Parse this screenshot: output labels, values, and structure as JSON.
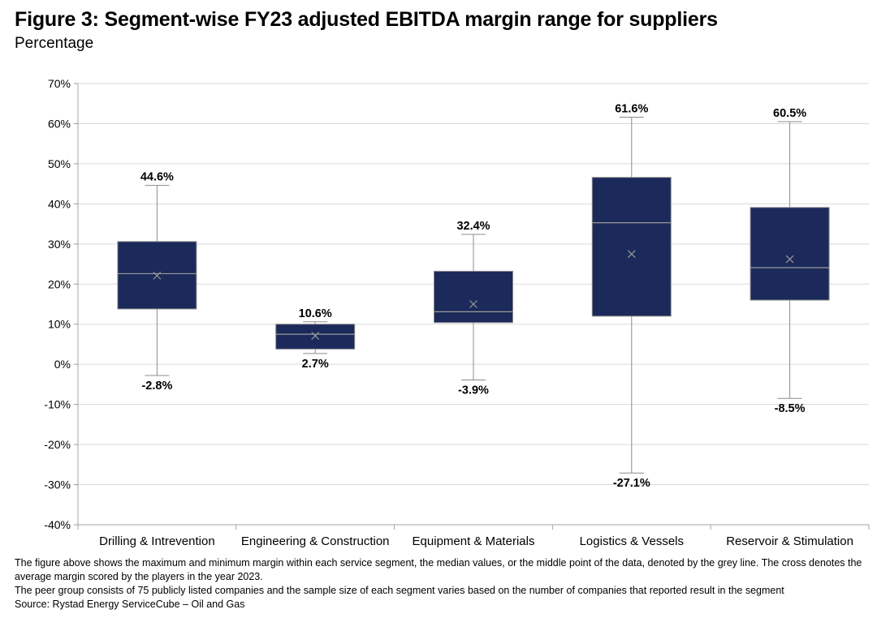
{
  "title": "Figure 3: Segment-wise FY23 adjusted EBITDA margin range for suppliers",
  "subtitle": "Percentage",
  "chart_data": {
    "type": "box",
    "ylabel": "Percentage",
    "ylim": [
      -40,
      70
    ],
    "yticks": [
      70,
      60,
      50,
      40,
      30,
      20,
      10,
      0,
      -10,
      -20,
      -30,
      -40
    ],
    "ytick_labels": [
      "70%",
      "60%",
      "50%",
      "40%",
      "30%",
      "20%",
      "10%",
      "0%",
      "-10%",
      "-20%",
      "-30%",
      "-40%"
    ],
    "grid": true,
    "box_color": "#1b2a5a",
    "categories": [
      "Drilling & Intrevention",
      "Engineering & Construction",
      "Equipment & Materials",
      "Logistics & Vessels",
      "Reservoir & Stimulation"
    ],
    "series": [
      {
        "name": "Drilling & Intrevention",
        "min": -2.8,
        "q1": 13.8,
        "median": 22.6,
        "q3": 30.6,
        "max": 44.6,
        "mean": 22.1,
        "min_label": "-2.8%",
        "max_label": "44.6%"
      },
      {
        "name": "Engineering & Construction",
        "min": 2.7,
        "q1": 3.8,
        "median": 7.5,
        "q3": 10.0,
        "max": 10.6,
        "mean": 7.1,
        "min_label": "2.7%",
        "max_label": "10.6%"
      },
      {
        "name": "Equipment & Materials",
        "min": -3.9,
        "q1": 10.4,
        "median": 13.1,
        "q3": 23.2,
        "max": 32.4,
        "mean": 15.0,
        "min_label": "-3.9%",
        "max_label": "32.4%"
      },
      {
        "name": "Logistics & Vessels",
        "min": -27.1,
        "q1": 12.0,
        "median": 35.3,
        "q3": 46.6,
        "max": 61.6,
        "mean": 27.5,
        "min_label": "-27.1%",
        "max_label": "61.6%"
      },
      {
        "name": "Reservoir & Stimulation",
        "min": -8.5,
        "q1": 16.0,
        "median": 24.1,
        "q3": 39.1,
        "max": 60.5,
        "mean": 26.2,
        "min_label": "-8.5%",
        "max_label": "60.5%"
      }
    ]
  },
  "notes": {
    "line1": "The figure above shows the maximum and minimum margin within each service segment, the median values, or the middle point of the data, denoted by the grey line. The cross denotes the average margin scored by the players in the year 2023.",
    "line2": "The peer group consists of 75 publicly listed companies and the sample size of each segment varies based on the number of companies that reported result in the segment",
    "source": "Source:  Rystad Energy ServiceCube – Oil and Gas"
  }
}
